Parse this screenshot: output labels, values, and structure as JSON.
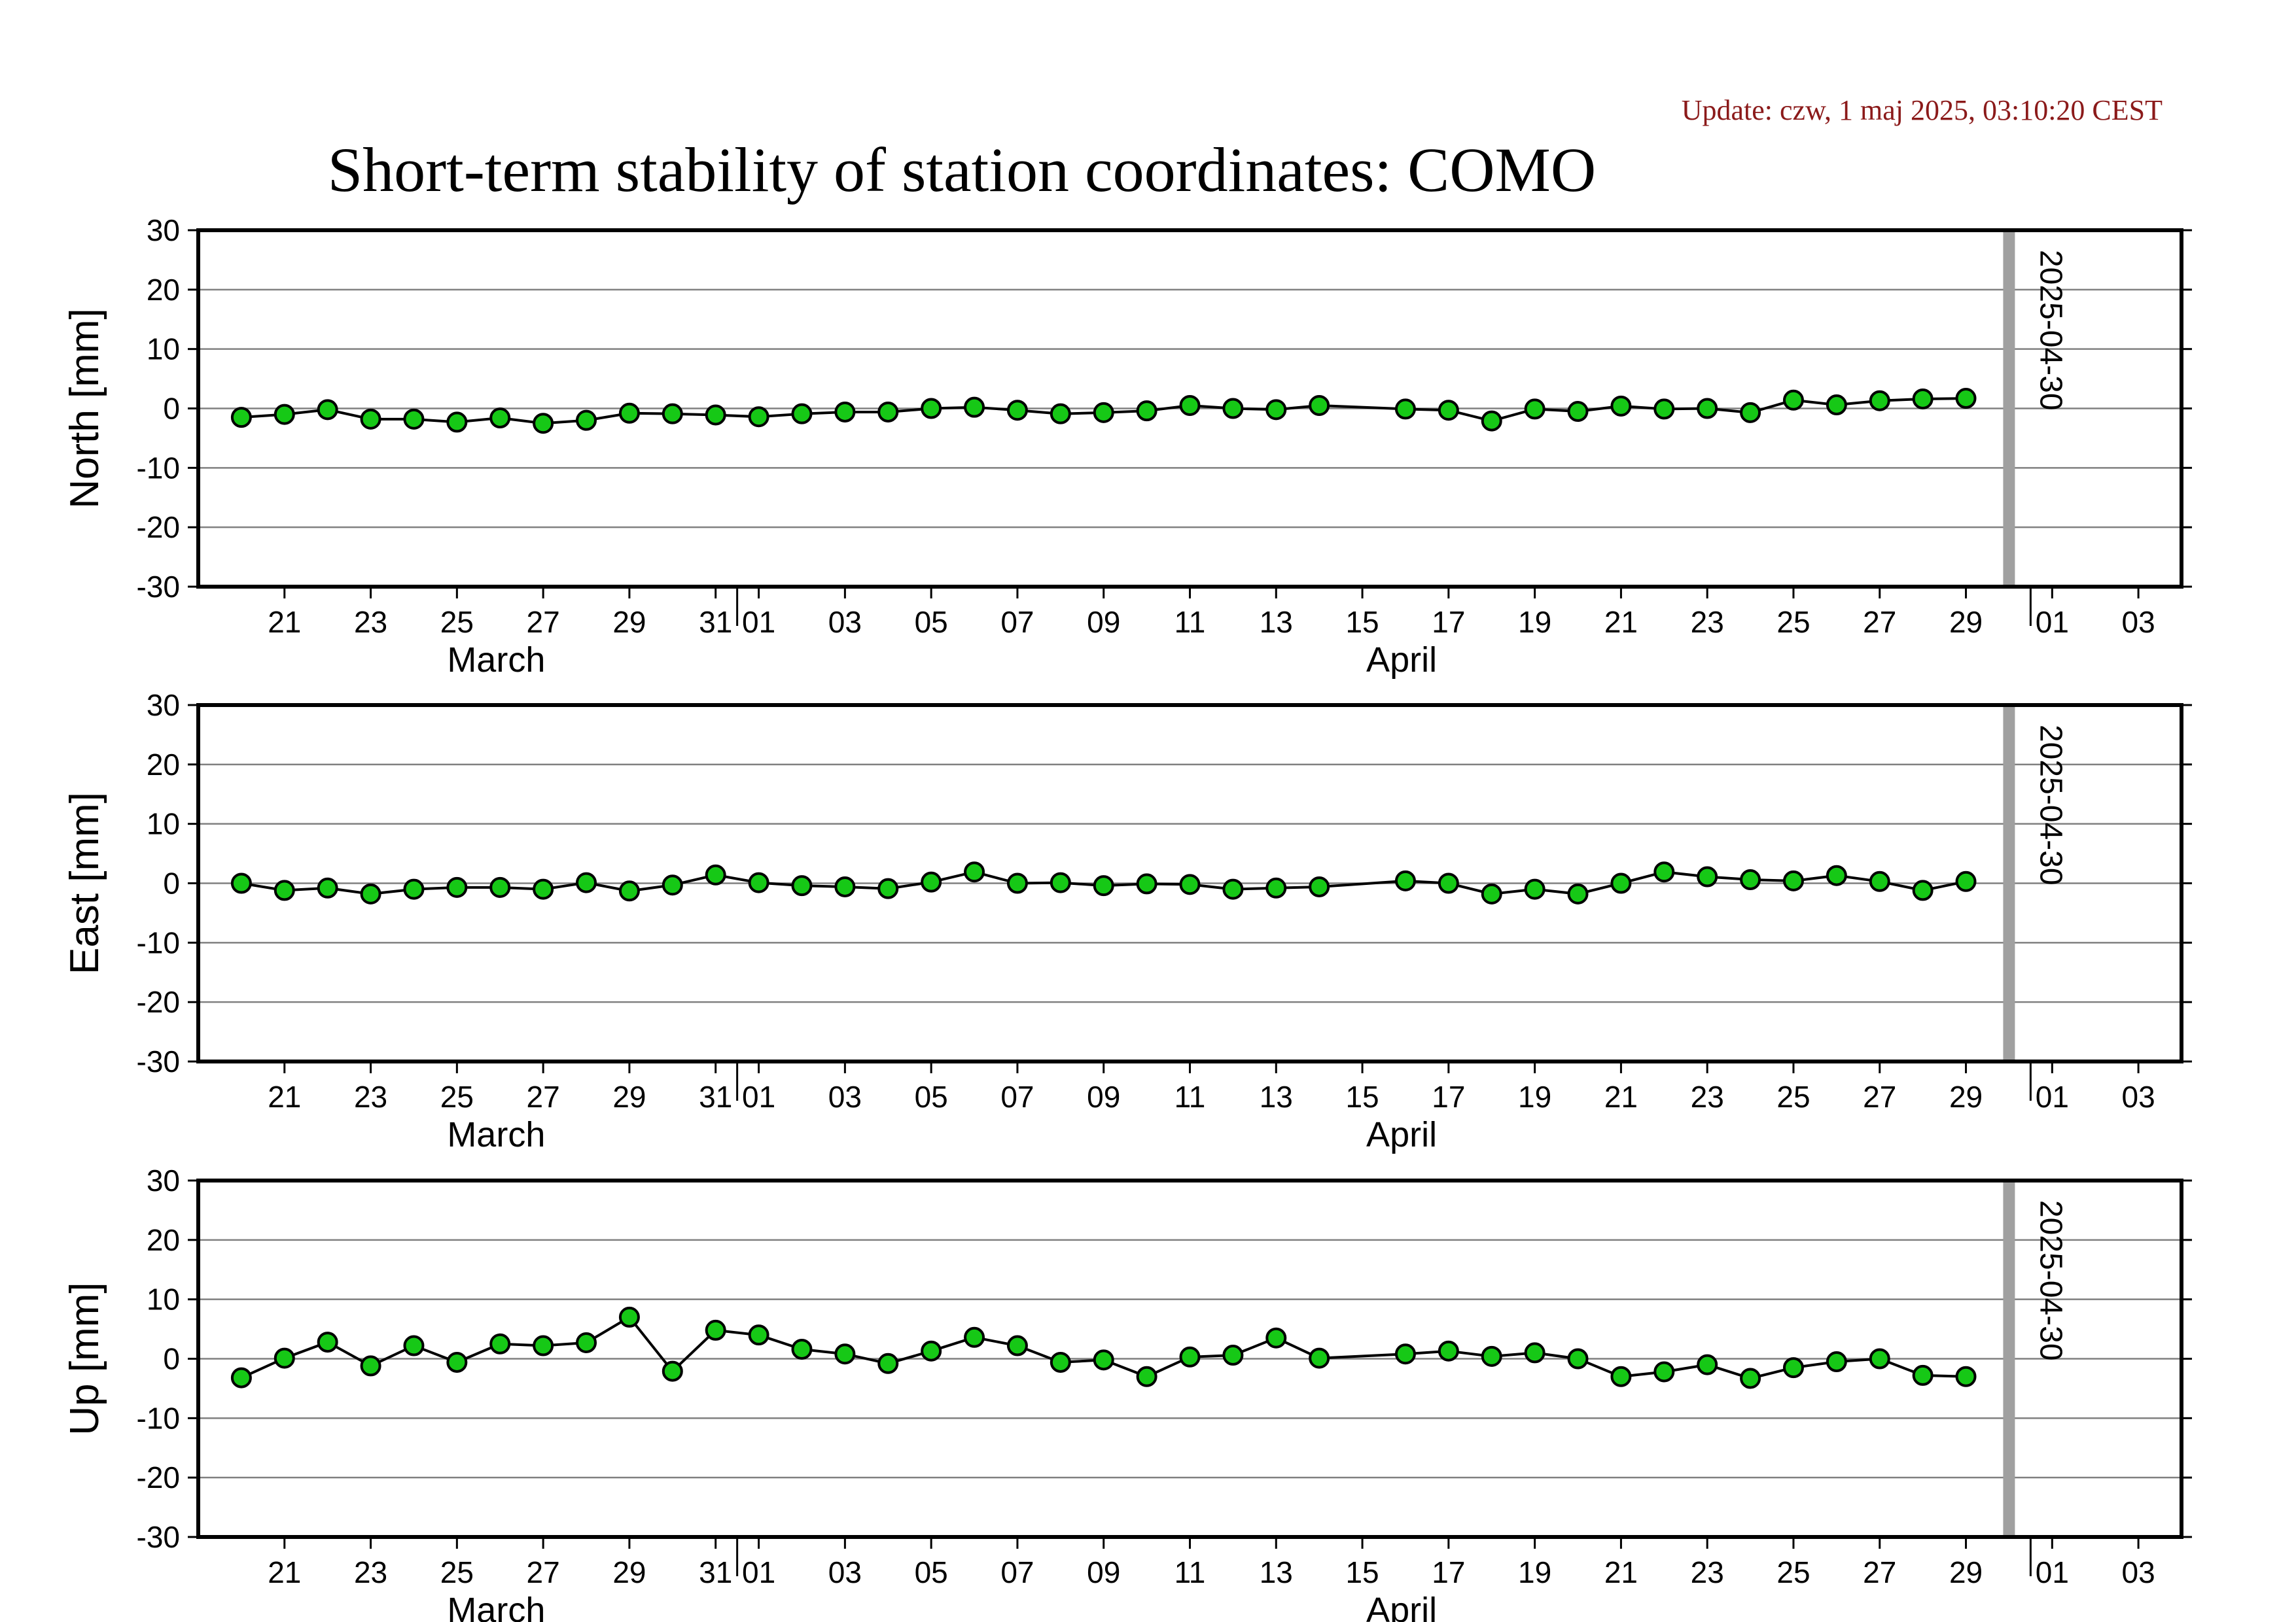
{
  "update_text": "Update: czw, 1 maj 2025, 03:10:20 CEST",
  "colors": {
    "update_text": "#8b1a1a",
    "marker_fill": "#16c816",
    "marker_stroke": "#000000",
    "line": "#000000",
    "grid": "#808080",
    "today_line": "#a0a0a0"
  },
  "chart_data": {
    "type": "line",
    "title": "Short-term stability of station coordinates: COMO",
    "x_axis": {
      "type": "date",
      "range": [
        "2025-03-19",
        "2025-05-04"
      ],
      "tick_dates": [
        "2025-03-21",
        "2025-03-23",
        "2025-03-25",
        "2025-03-27",
        "2025-03-29",
        "2025-03-31",
        "2025-04-01",
        "2025-04-03",
        "2025-04-05",
        "2025-04-07",
        "2025-04-09",
        "2025-04-11",
        "2025-04-13",
        "2025-04-15",
        "2025-04-17",
        "2025-04-19",
        "2025-04-21",
        "2025-04-23",
        "2025-04-25",
        "2025-04-27",
        "2025-04-29",
        "2025-05-01",
        "2025-05-03"
      ],
      "tick_labels": [
        "21",
        "23",
        "25",
        "27",
        "29",
        "31",
        "01",
        "03",
        "05",
        "07",
        "09",
        "11",
        "13",
        "15",
        "17",
        "19",
        "21",
        "23",
        "25",
        "27",
        "29",
        "01",
        "03"
      ],
      "month_labels": [
        {
          "label": "March",
          "date": "2025-03-25"
        },
        {
          "label": "April",
          "date": "2025-04-15"
        }
      ]
    },
    "marker_date": "2025-04-30",
    "marker_label": "2025-04-30",
    "grid": true,
    "x": [
      "2025-03-20",
      "2025-03-21",
      "2025-03-22",
      "2025-03-23",
      "2025-03-24",
      "2025-03-25",
      "2025-03-26",
      "2025-03-27",
      "2025-03-28",
      "2025-03-29",
      "2025-03-30",
      "2025-03-31",
      "2025-04-01",
      "2025-04-02",
      "2025-04-03",
      "2025-04-04",
      "2025-04-05",
      "2025-04-06",
      "2025-04-07",
      "2025-04-08",
      "2025-04-09",
      "2025-04-10",
      "2025-04-11",
      "2025-04-12",
      "2025-04-13",
      "2025-04-14",
      "2025-04-16",
      "2025-04-17",
      "2025-04-18",
      "2025-04-19",
      "2025-04-20",
      "2025-04-21",
      "2025-04-22",
      "2025-04-23",
      "2025-04-24",
      "2025-04-25",
      "2025-04-26",
      "2025-04-27",
      "2025-04-28",
      "2025-04-29"
    ],
    "panels": [
      {
        "ylabel": "North [mm]",
        "ylim": [
          -30,
          30
        ],
        "yticks": [
          30,
          20,
          10,
          0,
          -10,
          -20,
          -30
        ],
        "values": [
          -1.5,
          -1.0,
          -0.2,
          -1.8,
          -1.8,
          -2.3,
          -1.6,
          -2.5,
          -2.0,
          -0.8,
          -0.9,
          -1.1,
          -1.4,
          -0.9,
          -0.6,
          -0.6,
          0.0,
          0.2,
          -0.3,
          -0.9,
          -0.7,
          -0.4,
          0.5,
          0.0,
          -0.2,
          0.5,
          -0.1,
          -0.3,
          -2.1,
          -0.1,
          -0.5,
          0.4,
          -0.1,
          0.0,
          -0.7,
          1.4,
          0.6,
          1.3,
          1.6,
          1.7
        ]
      },
      {
        "ylabel": "East [mm]",
        "ylim": [
          -30,
          30
        ],
        "yticks": [
          30,
          20,
          10,
          0,
          -10,
          -20,
          -30
        ],
        "values": [
          0.0,
          -1.2,
          -0.8,
          -1.8,
          -1.0,
          -0.7,
          -0.7,
          -1.0,
          0.1,
          -1.3,
          -0.3,
          1.4,
          0.1,
          -0.4,
          -0.6,
          -0.9,
          0.2,
          1.9,
          0.0,
          0.1,
          -0.4,
          -0.1,
          -0.2,
          -1.0,
          -0.8,
          -0.6,
          0.4,
          0.0,
          -1.8,
          -1.0,
          -1.8,
          0.0,
          1.9,
          1.1,
          0.6,
          0.4,
          1.3,
          0.3,
          -1.2,
          0.3
        ]
      },
      {
        "ylabel": "Up [mm]",
        "ylim": [
          -30,
          30
        ],
        "yticks": [
          30,
          20,
          10,
          0,
          -10,
          -20,
          -30
        ],
        "values": [
          -3.2,
          0.1,
          2.8,
          -1.2,
          2.2,
          -0.6,
          2.5,
          2.2,
          2.7,
          7.0,
          -2.1,
          4.8,
          4.0,
          1.6,
          0.8,
          -0.8,
          1.3,
          3.6,
          2.2,
          -0.6,
          -0.2,
          -3.0,
          0.3,
          0.6,
          3.5,
          0.1,
          0.8,
          1.3,
          0.4,
          1.0,
          0.0,
          -3.0,
          -2.2,
          -1.0,
          -3.3,
          -1.5,
          -0.5,
          0.0,
          -2.8,
          -3.0
        ]
      }
    ]
  }
}
